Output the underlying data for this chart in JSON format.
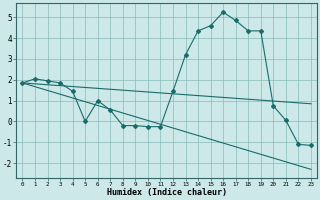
{
  "title": "",
  "xlabel": "Humidex (Indice chaleur)",
  "background_color": "#cce8e8",
  "grid_color": "#88bbbb",
  "line_color": "#1a6b6b",
  "xlim": [
    -0.5,
    23.5
  ],
  "ylim": [
    -2.7,
    5.7
  ],
  "xticks": [
    0,
    1,
    2,
    3,
    4,
    5,
    6,
    7,
    8,
    9,
    10,
    11,
    12,
    13,
    14,
    15,
    16,
    17,
    18,
    19,
    20,
    21,
    22,
    23
  ],
  "yticks": [
    -2,
    -1,
    0,
    1,
    2,
    3,
    4,
    5
  ],
  "curve1_x": [
    0,
    1,
    2,
    3,
    4,
    5,
    6,
    7,
    8,
    9,
    10,
    11,
    12,
    13,
    14,
    15,
    16,
    17,
    18,
    19,
    20,
    21,
    22,
    23
  ],
  "curve1_y": [
    1.85,
    2.05,
    1.95,
    1.85,
    1.45,
    0.0,
    1.0,
    0.55,
    -0.2,
    -0.2,
    -0.25,
    -0.25,
    1.45,
    3.2,
    4.35,
    4.6,
    5.25,
    4.85,
    4.35,
    4.35,
    0.75,
    0.05,
    -1.1,
    -1.15
  ],
  "curve2_x": [
    0,
    23
  ],
  "curve2_y": [
    1.85,
    0.85
  ],
  "curve3_x": [
    0,
    23
  ],
  "curve3_y": [
    1.85,
    -2.3
  ]
}
